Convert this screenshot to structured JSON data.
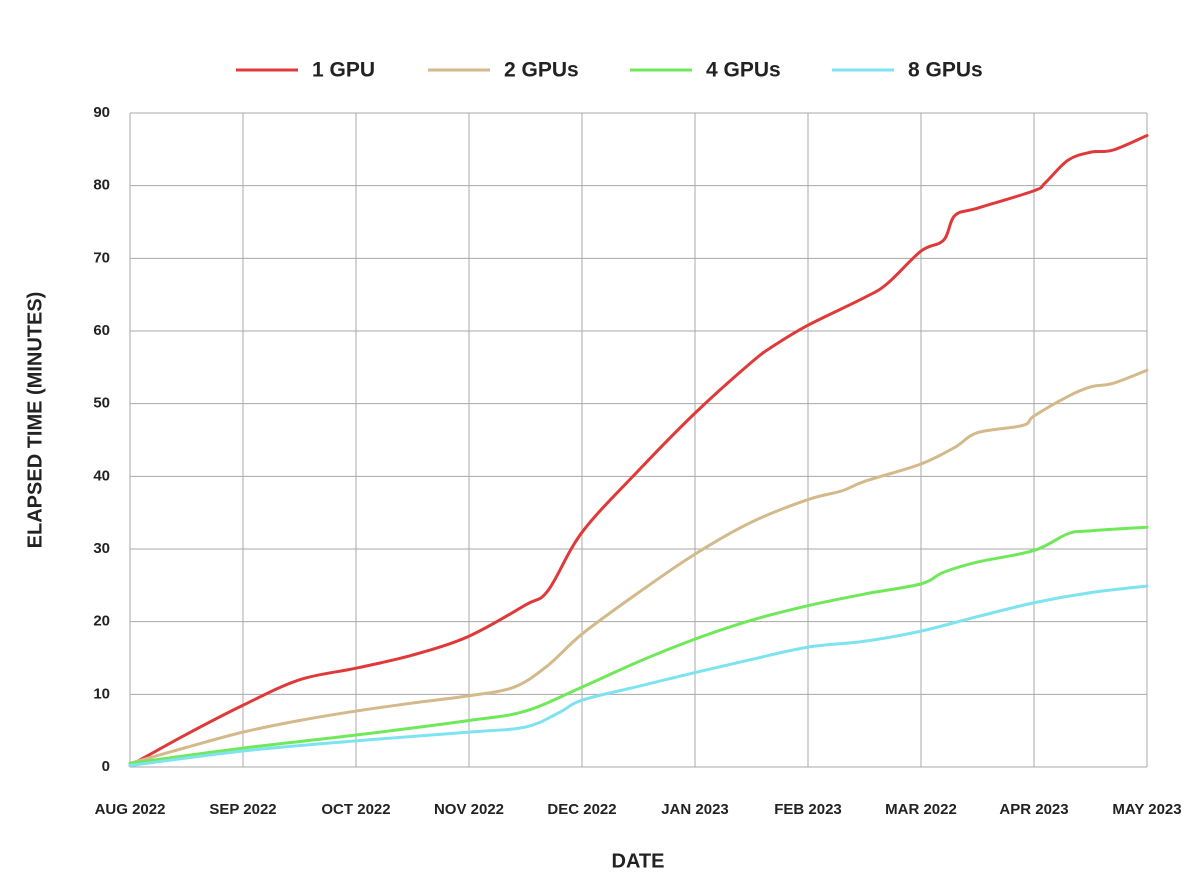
{
  "chart_data": {
    "type": "line",
    "xlabel": "DATE",
    "ylabel": "ELAPSED TIME (MINUTES)",
    "xlim": [
      0,
      9
    ],
    "xticks": [
      {
        "value": 0,
        "label": "AUG 2022"
      },
      {
        "value": 1,
        "label": "SEP 2022"
      },
      {
        "value": 2,
        "label": "OCT 2022"
      },
      {
        "value": 3,
        "label": "NOV 2022"
      },
      {
        "value": 4,
        "label": "DEC 2022"
      },
      {
        "value": 5,
        "label": "JAN 2023"
      },
      {
        "value": 6,
        "label": "FEB 2023"
      },
      {
        "value": 7,
        "label": "MAR 2022"
      },
      {
        "value": 8,
        "label": "APR 2023"
      },
      {
        "value": 9,
        "label": "MAY 2023"
      }
    ],
    "ylim": [
      0,
      90
    ],
    "yticks": [
      0,
      10,
      20,
      30,
      40,
      50,
      60,
      70,
      80,
      90
    ],
    "grid": true,
    "legend": "top",
    "series": [
      {
        "name": "1 GPU",
        "color": "#e0393a",
        "x": [
          0,
          0.5,
          1,
          1.5,
          2,
          2.5,
          3,
          3.5,
          3.7,
          4,
          4.5,
          5,
          5.5,
          5.7,
          6,
          6.5,
          6.7,
          7,
          7.2,
          7.3,
          7.5,
          8,
          8.1,
          8.3,
          8.5,
          8.7,
          9
        ],
        "values": [
          0.2,
          4.5,
          8.5,
          12,
          13.6,
          15.4,
          18,
          22.3,
          24.3,
          32.3,
          40.8,
          48.7,
          55.7,
          58,
          60.8,
          64.6,
          66.5,
          71,
          72.5,
          75.9,
          76.9,
          79.3,
          80.4,
          83.5,
          84.6,
          84.9,
          86.9
        ]
      },
      {
        "name": "2 GPUs",
        "color": "#d4b98a",
        "x": [
          0,
          0.5,
          1,
          1.5,
          2,
          2.5,
          3,
          3.4,
          3.7,
          4,
          4.5,
          5,
          5.5,
          6,
          6.3,
          6.5,
          7,
          7.3,
          7.5,
          7.9,
          8,
          8.3,
          8.5,
          8.7,
          9
        ],
        "values": [
          0.5,
          2.7,
          4.8,
          6.4,
          7.7,
          8.8,
          9.8,
          11,
          14,
          18.3,
          24,
          29.3,
          33.7,
          36.8,
          38,
          39.3,
          41.7,
          44,
          46,
          47,
          48.3,
          51,
          52.3,
          52.8,
          54.6
        ]
      },
      {
        "name": "4 GPUs",
        "color": "#6fe85a",
        "x": [
          0,
          1,
          2,
          3,
          3.5,
          4,
          4.5,
          5,
          5.5,
          6,
          6.5,
          7,
          7.2,
          7.5,
          8,
          8.3,
          8.5,
          9
        ],
        "values": [
          0.5,
          2.6,
          4.4,
          6.4,
          7.7,
          11,
          14.5,
          17.6,
          20.2,
          22.2,
          23.8,
          25.2,
          26.8,
          28.2,
          29.8,
          32.1,
          32.5,
          33
        ]
      },
      {
        "name": "8 GPUs",
        "color": "#7de3ef",
        "x": [
          0,
          1,
          2,
          3,
          3.5,
          3.8,
          4,
          4.5,
          5,
          5.5,
          6,
          6.5,
          7,
          7.5,
          8,
          8.5,
          9
        ],
        "values": [
          0.2,
          2.2,
          3.6,
          4.8,
          5.5,
          7.5,
          9.2,
          11.1,
          13,
          14.8,
          16.5,
          17.3,
          18.7,
          20.7,
          22.6,
          24,
          24.9
        ]
      }
    ]
  }
}
